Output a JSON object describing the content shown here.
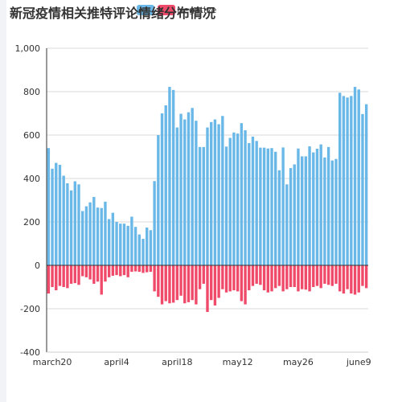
{
  "chart_data": {
    "type": "bar",
    "title": "新冠疫情相关推特评论情绪分布情况",
    "colors": {
      "positive": "#6ab8e8",
      "negative": "#f04a6a"
    },
    "series": [
      {
        "name": "positive",
        "values": [
          540,
          445,
          472,
          463,
          413,
          378,
          345,
          387,
          373,
          250,
          272,
          290,
          315,
          266,
          264,
          293,
          213,
          242,
          200,
          192,
          192,
          182,
          224,
          177,
          142,
          122,
          174,
          162,
          388,
          600,
          700,
          737,
          822,
          808,
          635,
          698,
          672,
          705,
          725,
          666,
          545,
          545,
          635,
          660,
          672,
          650,
          688,
          547,
          587,
          612,
          607,
          655,
          622,
          563,
          593,
          573,
          542,
          542,
          538,
          540,
          523,
          438,
          543,
          373,
          448,
          465,
          538,
          502,
          502,
          548,
          520,
          537,
          557,
          497,
          545,
          483,
          490,
          795,
          780,
          773,
          780,
          822,
          810,
          697,
          742
        ]
      },
      {
        "name": "Negative",
        "values": [
          -130,
          -100,
          -115,
          -95,
          -100,
          -105,
          -85,
          -82,
          -90,
          -50,
          -55,
          -65,
          -85,
          -75,
          -135,
          -75,
          -55,
          -48,
          -45,
          -50,
          -45,
          -55,
          -30,
          -28,
          -30,
          -35,
          -32,
          -30,
          -120,
          -145,
          -180,
          -165,
          -175,
          -172,
          -160,
          -140,
          -175,
          -170,
          -160,
          -180,
          -110,
          -85,
          -215,
          -160,
          -185,
          -150,
          -110,
          -125,
          -120,
          -115,
          -120,
          -165,
          -180,
          -115,
          -95,
          -85,
          -90,
          -115,
          -125,
          -120,
          -105,
          -95,
          -120,
          -110,
          -100,
          -100,
          -120,
          -110,
          -112,
          -120,
          -100,
          -95,
          -105,
          -85,
          -90,
          -95,
          -85,
          -120,
          -130,
          -110,
          -130,
          -135,
          -125,
          -95,
          -105
        ]
      }
    ],
    "x_tick_labels": [
      "march20",
      "april4",
      "april18",
      "may12",
      "may26",
      "june9"
    ],
    "x_tick_positions": [
      1,
      18,
      34,
      50,
      66,
      82
    ],
    "y_ticks": [
      "-400",
      "-200",
      "0",
      "200",
      "400",
      "600",
      "800",
      "1,000"
    ],
    "ylim": [
      -400,
      1000
    ],
    "grid": true,
    "legend_position": "top"
  }
}
